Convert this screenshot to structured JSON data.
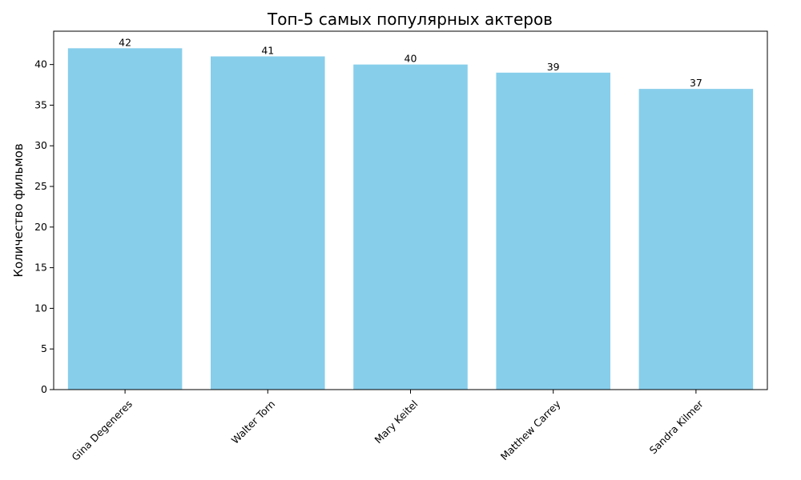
{
  "chart_data": {
    "type": "bar",
    "title": "Топ-5 самых популярных актеров",
    "xlabel": "",
    "ylabel": "Количество фильмов",
    "categories": [
      "Gina Degeneres",
      "Walter Torn",
      "Mary Keitel",
      "Matthew Carrey",
      "Sandra Kilmer"
    ],
    "values": [
      42,
      41,
      40,
      39,
      37
    ],
    "data_labels": [
      "42",
      "41",
      "40",
      "39",
      "37"
    ],
    "ylim": [
      0,
      44.1
    ],
    "yticks": [
      0,
      5,
      10,
      15,
      20,
      25,
      30,
      35,
      40
    ],
    "ytick_labels": [
      "0",
      "5",
      "10",
      "15",
      "20",
      "25",
      "30",
      "35",
      "40"
    ],
    "bar_color": "#87CEEB",
    "grid": false,
    "legend": "none"
  }
}
